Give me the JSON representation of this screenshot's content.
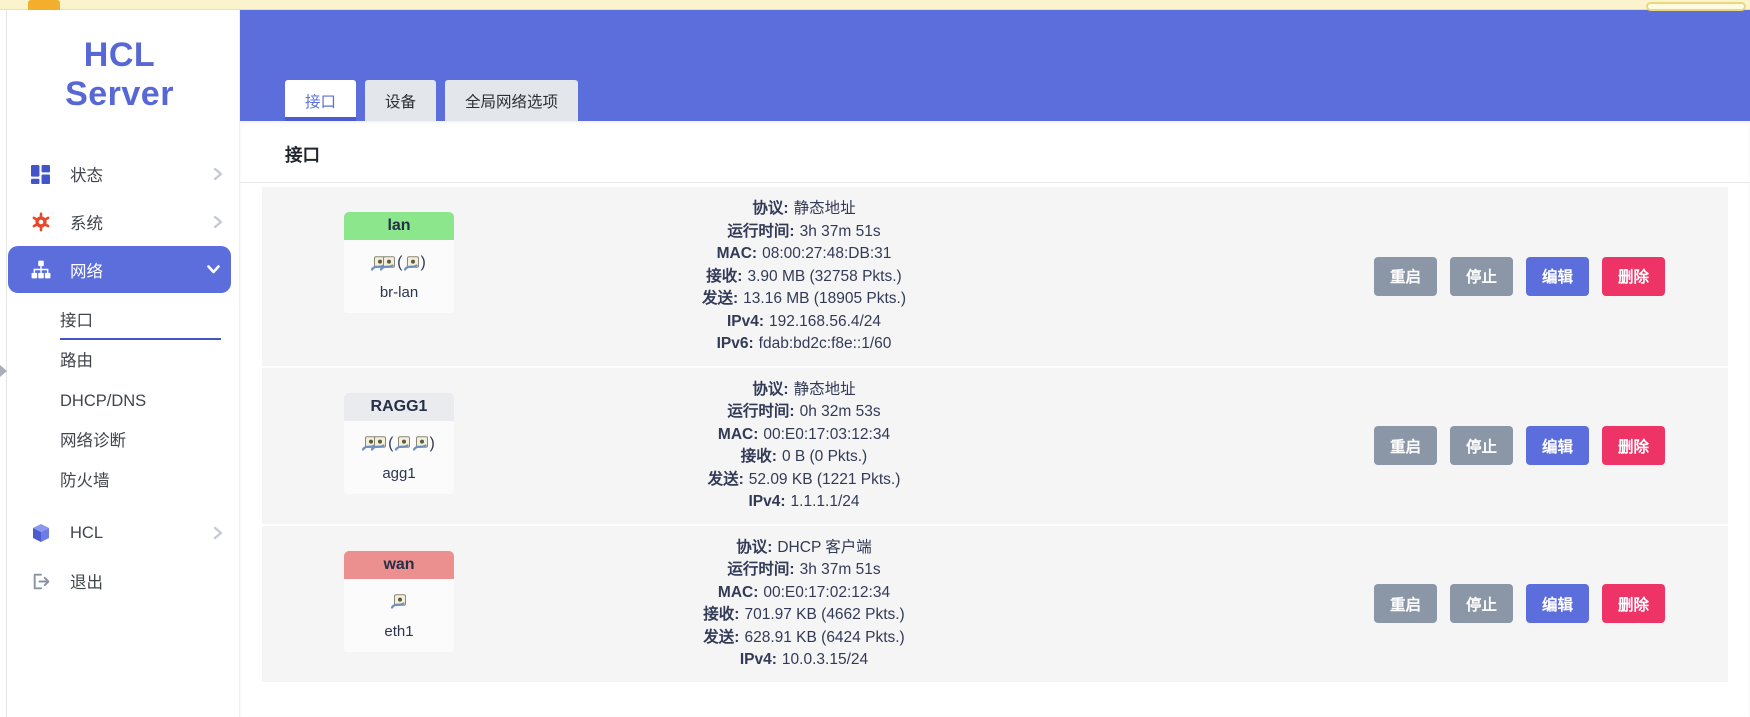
{
  "sidebar": {
    "logo": {
      "line1": "HCL",
      "line2": "Server"
    },
    "menu": [
      {
        "label": "状态",
        "icon": "dashboard-icon",
        "chevron": "right",
        "active": false
      },
      {
        "label": "系统",
        "icon": "gear-icon",
        "chevron": "right",
        "active": false
      },
      {
        "label": "网络",
        "icon": "sitemap-icon",
        "chevron": "down",
        "active": true
      }
    ],
    "submenu": [
      {
        "label": "接口",
        "active": true
      },
      {
        "label": "路由",
        "active": false
      },
      {
        "label": "DHCP/DNS",
        "active": false
      },
      {
        "label": "网络诊断",
        "active": false
      },
      {
        "label": "防火墙",
        "active": false
      }
    ],
    "menu_bottom": [
      {
        "label": "HCL",
        "icon": "cube-icon",
        "chevron": "right"
      },
      {
        "label": "退出",
        "icon": "logout-icon",
        "chevron": "none"
      }
    ]
  },
  "tabs": [
    {
      "label": "接口",
      "active": true
    },
    {
      "label": "设备",
      "active": false
    },
    {
      "label": "全局网络选项",
      "active": false
    }
  ],
  "main": {
    "section_title": "接口"
  },
  "actions": {
    "restart": "重启",
    "stop": "停止",
    "edit": "编辑",
    "delete": "删除"
  },
  "punctuation": {
    "open": "(",
    "close": ")"
  },
  "interfaces": [
    {
      "name": "lan",
      "badge_color": "#8ce68c",
      "device": "br-lan",
      "ports": {
        "outside": 2,
        "inside": 1
      },
      "details": [
        {
          "label": "协议:",
          "value": "静态地址"
        },
        {
          "label": "运行时间:",
          "value": "3h 37m 51s"
        },
        {
          "label": "MAC:",
          "value": "08:00:27:48:DB:31"
        },
        {
          "label": "接收:",
          "value": "3.90 MB (32758 Pkts.)"
        },
        {
          "label": "发送:",
          "value": "13.16 MB (18905 Pkts.)"
        },
        {
          "label": "IPv4:",
          "value": "192.168.56.4/24"
        },
        {
          "label": "IPv6:",
          "value": "fdab:bd2c:f8e::1/60"
        }
      ]
    },
    {
      "name": "RAGG1",
      "badge_color": "#e9ebee",
      "device": "agg1",
      "ports": {
        "outside": 2,
        "inside": 2
      },
      "details": [
        {
          "label": "协议:",
          "value": "静态地址"
        },
        {
          "label": "运行时间:",
          "value": "0h 32m 53s"
        },
        {
          "label": "MAC:",
          "value": "00:E0:17:03:12:34"
        },
        {
          "label": "接收:",
          "value": "0 B (0 Pkts.)"
        },
        {
          "label": "发送:",
          "value": "52.09 KB (1221 Pkts.)"
        },
        {
          "label": "IPv4:",
          "value": "1.1.1.1/24"
        }
      ]
    },
    {
      "name": "wan",
      "badge_color": "#ec8f8f",
      "device": "eth1",
      "ports": {
        "outside": 1,
        "inside": 0
      },
      "details": [
        {
          "label": "协议:",
          "value": "DHCP 客户端"
        },
        {
          "label": "运行时间:",
          "value": "3h 37m 51s"
        },
        {
          "label": "MAC:",
          "value": "00:E0:17:02:12:34"
        },
        {
          "label": "接收:",
          "value": "701.97 KB (4662 Pkts.)"
        },
        {
          "label": "发送:",
          "value": "628.91 KB (6424 Pkts.)"
        },
        {
          "label": "IPv4:",
          "value": "10.0.3.15/24"
        }
      ]
    }
  ],
  "colors": {
    "accent": "#5b6edc",
    "danger": "#ee3366",
    "neutral_button": "#8b97a7",
    "green_badge": "#8ce68c",
    "gray_badge": "#e9ebee",
    "red_badge": "#ec8f8f",
    "row_bg": "#f5f5f6",
    "text_dark": "#333a56"
  }
}
